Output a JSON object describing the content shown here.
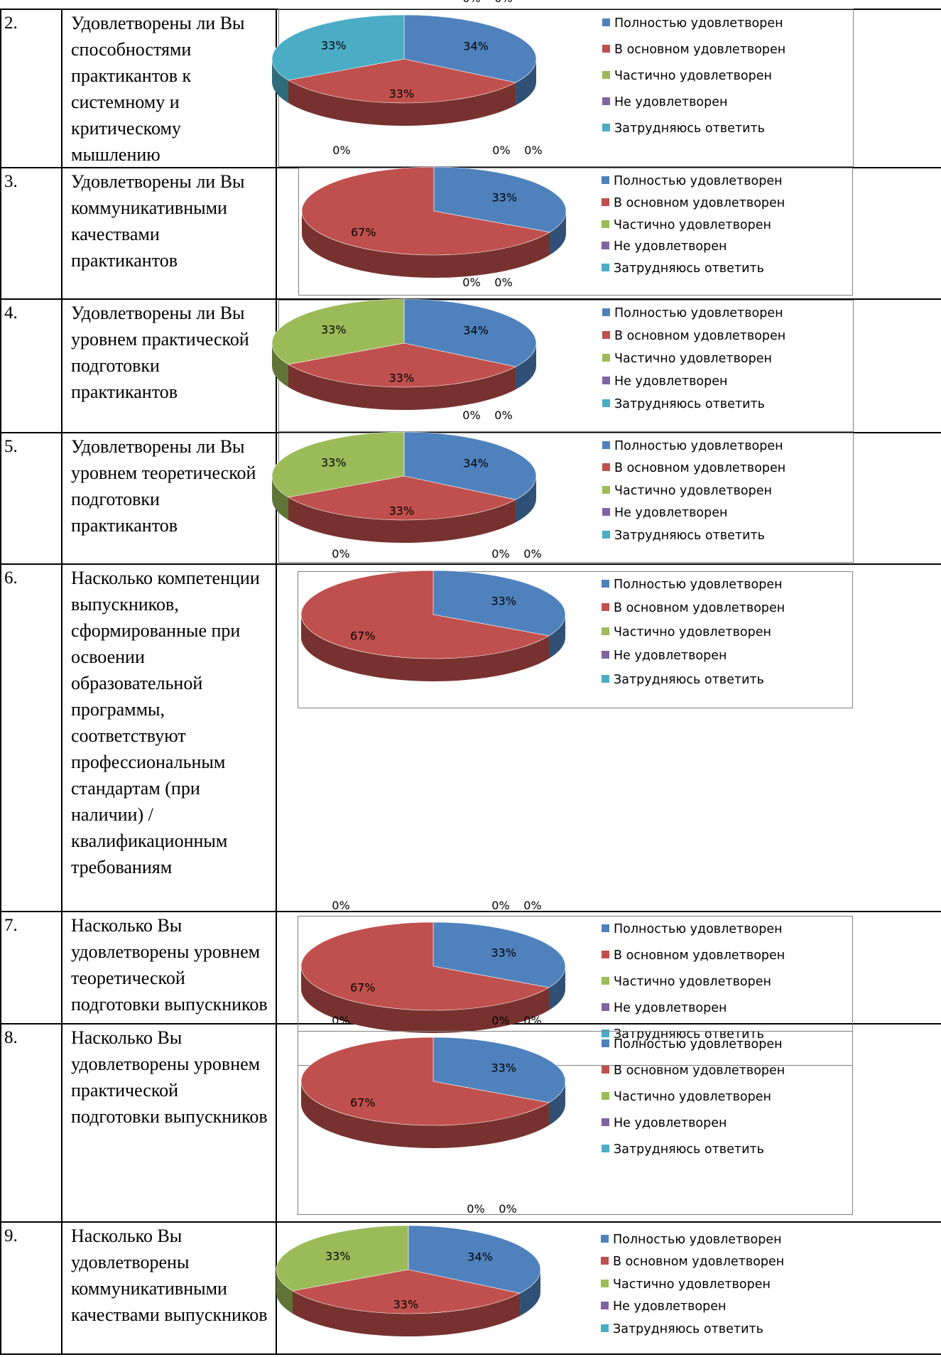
{
  "colors": {
    "fully": "#4F81BD",
    "mostly": "#C0504D",
    "partly": "#9BBB59",
    "not": "#8064A2",
    "unsure": "#4BACC6"
  },
  "rows": [
    {
      "number": "2.",
      "question": "Удовлетворены ли Вы способностями практикантов к системному и критическому мышлению"
    },
    {
      "number": "3.",
      "question": "Удовлетворены ли Вы коммуникативными качествами практикантов"
    },
    {
      "number": "4.",
      "question": "Удовлетворены ли Вы уровнем практической подготовки практикантов"
    },
    {
      "number": "5.",
      "question": "Удовлетворены ли Вы уровнем теоретической подготовки практикантов"
    },
    {
      "number": "6.",
      "question": "Насколько компетенции выпускников, сформированные при освоении образовательной программы, соответствуют профессиональным стандартам (при наличии) / квалификационным требованиям"
    },
    {
      "number": "7.",
      "question": "Насколько Вы удовлетворены уровнем теоретической подготовки выпускников"
    },
    {
      "number": "8.",
      "question": "Насколько Вы удовлетворены уровнем практической подготовки выпускников"
    },
    {
      "number": "9.",
      "question": "Насколько Вы удовлетворены коммуникативными качествами выпускников"
    }
  ],
  "chart_data": [
    {
      "type": "pie",
      "categories": [
        "Полностью удовлетворен",
        "В основном удовлетворен",
        "Частично удовлетворен",
        "Не удовлетворен",
        "Затрудняюсь ответить"
      ],
      "values": [
        34,
        33,
        0,
        0,
        33
      ],
      "labels": [
        "34%",
        "33%",
        "0%",
        "0%",
        "33%"
      ]
    },
    {
      "type": "pie",
      "categories": [
        "Полностью удовлетворен",
        "В основном удовлетворен",
        "Частично удовлетворен",
        "Не удовлетворен",
        "Затрудняюсь ответить"
      ],
      "values": [
        33,
        67,
        0,
        0,
        0
      ],
      "labels": [
        "33%",
        "67%",
        "0%",
        "0%",
        "0%"
      ]
    },
    {
      "type": "pie",
      "categories": [
        "Полностью удовлетворен",
        "В основном удовлетворен",
        "Частично удовлетворен",
        "Не удовлетворен",
        "Затрудняюсь ответить"
      ],
      "values": [
        34,
        33,
        33,
        0,
        0
      ],
      "labels": [
        "34%",
        "33%",
        "33%",
        "0%",
        "0%"
      ]
    },
    {
      "type": "pie",
      "categories": [
        "Полностью удовлетворен",
        "В основном удовлетворен",
        "Частично удовлетворен",
        "Не удовлетворен",
        "Затрудняюсь ответить"
      ],
      "values": [
        34,
        33,
        33,
        0,
        0
      ],
      "labels": [
        "34%",
        "33%",
        "33%",
        "0%",
        "0%"
      ]
    },
    {
      "type": "pie",
      "categories": [
        "Полностью удовлетворен",
        "В основном удовлетворен",
        "Частично удовлетворен",
        "Не удовлетворен",
        "Затрудняюсь ответить"
      ],
      "values": [
        33,
        67,
        0,
        0,
        0
      ],
      "labels": [
        "33%",
        "67%",
        "0%",
        "0%",
        "0%"
      ]
    },
    {
      "type": "pie",
      "categories": [
        "Полностью удовлетворен",
        "В основном удовлетворен",
        "Частично удовлетворен",
        "Не удовлетворен",
        "Затрудняюсь ответить"
      ],
      "values": [
        33,
        67,
        0,
        0,
        0
      ],
      "labels": [
        "33%",
        "67%",
        "0%",
        "0%",
        "0%"
      ]
    },
    {
      "type": "pie",
      "categories": [
        "Полностью удовлетворен",
        "В основном удовлетворен",
        "Частично удовлетворен",
        "Не удовлетворен",
        "Затрудняюсь ответить"
      ],
      "values": [
        33,
        67,
        0,
        0,
        0
      ],
      "labels": [
        "33%",
        "67%",
        "0%",
        "0%",
        "0%"
      ]
    },
    {
      "type": "pie",
      "categories": [
        "Полностью удовлетворен",
        "В основном удовлетворен",
        "Частично удовлетворен",
        "Не удовлетворен",
        "Затрудняюсь ответить"
      ],
      "values": [
        34,
        33,
        33,
        0,
        0
      ],
      "labels": [
        "34%",
        "33%",
        "33%",
        "0%",
        "0%"
      ]
    }
  ]
}
